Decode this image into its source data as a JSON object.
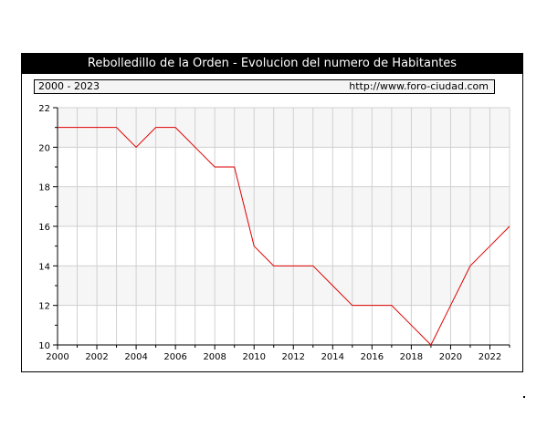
{
  "header": {
    "title": "Rebolledillo de la Orden - Evolucion del numero de Habitantes",
    "period": "2000 - 2023",
    "source": "http://www.foro-ciudad.com"
  },
  "colors": {
    "line": "#dd0000",
    "grid": "#d0d0d0",
    "band": "#f6f6f6",
    "title_bg": "#000000"
  },
  "chart_data": {
    "type": "line",
    "title": "Rebolledillo de la Orden - Evolucion del numero de Habitantes",
    "xlabel": "",
    "ylabel": "",
    "xlim": [
      2000,
      2023
    ],
    "ylim": [
      10,
      22
    ],
    "grid": true,
    "x_ticks": [
      2000,
      2002,
      2004,
      2006,
      2008,
      2010,
      2012,
      2014,
      2016,
      2018,
      2020,
      2022
    ],
    "y_ticks": [
      10,
      12,
      14,
      16,
      18,
      20,
      22
    ],
    "series": [
      {
        "x": [
          2000,
          2001,
          2002,
          2003,
          2004,
          2005,
          2006,
          2007,
          2008,
          2009,
          2010,
          2011,
          2012,
          2013,
          2014,
          2015,
          2016,
          2017,
          2018,
          2019,
          2020,
          2021,
          2022,
          2023
        ],
        "values": [
          21,
          21,
          21,
          21,
          20,
          21,
          21,
          20,
          19,
          19,
          15,
          14,
          14,
          14,
          13,
          12,
          12,
          12,
          11,
          10,
          12,
          14,
          15,
          16
        ]
      }
    ]
  }
}
